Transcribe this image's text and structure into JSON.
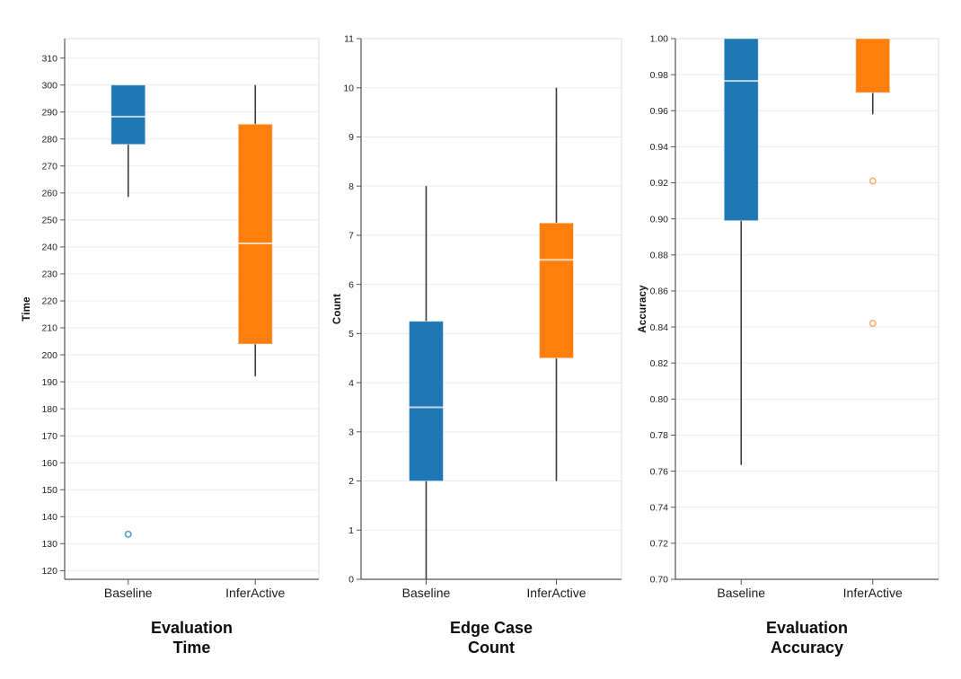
{
  "figure": {
    "background": "#ffffff"
  },
  "colors": {
    "baseline": "#1f77b4",
    "inferactive": "#ff7f0e",
    "baseline_outlier": "#55a0d3",
    "inferactive_outlier": "#fcae6b",
    "grid": "#ebebeb",
    "plot_border": "#dcdcdc",
    "axis": "#555555",
    "whisker": "#3a3a3a",
    "median": "rgba(255,255,255,0.7)",
    "tick_text": "#222222",
    "category_text": "#1a1a1a",
    "title_text": "#0d0d0d"
  },
  "chart_data": [
    {
      "type": "box",
      "title_lines": [
        "Evaluation",
        "Time"
      ],
      "ylabel": "Time",
      "xlabel": "",
      "categories": [
        "Baseline",
        "InferActive"
      ],
      "ylim": [
        116.8,
        317.2
      ],
      "yticks": [
        120,
        130,
        140,
        150,
        160,
        170,
        180,
        190,
        200,
        210,
        220,
        230,
        240,
        250,
        260,
        270,
        280,
        290,
        300,
        310
      ],
      "ytick_labels": [
        "120",
        "130",
        "140",
        "150",
        "160",
        "170",
        "180",
        "190",
        "200",
        "210",
        "220",
        "230",
        "240",
        "250",
        "260",
        "270",
        "280",
        "290",
        "300",
        "310"
      ],
      "grid": true,
      "legend_position": "none",
      "series": [
        {
          "name": "Baseline",
          "color": "baseline",
          "outlier_color": "baseline_outlier",
          "whisker_low": 258.5,
          "q1": 278,
          "median": 288.3,
          "q3": 300,
          "whisker_high": 300,
          "outliers": [
            133.5
          ]
        },
        {
          "name": "InferActive",
          "color": "inferactive",
          "outlier_color": "inferactive_outlier",
          "whisker_low": 192,
          "q1": 204,
          "median": 241.3,
          "q3": 285.5,
          "whisker_high": 300,
          "outliers": []
        }
      ]
    },
    {
      "type": "box",
      "title_lines": [
        "Edge Case",
        "Count"
      ],
      "ylabel": "Count",
      "xlabel": "",
      "categories": [
        "Baseline",
        "InferActive"
      ],
      "ylim": [
        0,
        11
      ],
      "yticks": [
        0,
        1,
        2,
        3,
        4,
        5,
        6,
        7,
        8,
        9,
        10,
        11
      ],
      "ytick_labels": [
        "0",
        "1",
        "2",
        "3",
        "4",
        "5",
        "6",
        "7",
        "8",
        "9",
        "10",
        "11"
      ],
      "grid": true,
      "legend_position": "none",
      "series": [
        {
          "name": "Baseline",
          "color": "baseline",
          "outlier_color": "baseline_outlier",
          "whisker_low": 0,
          "q1": 2,
          "median": 3.5,
          "q3": 5.25,
          "whisker_high": 8,
          "outliers": []
        },
        {
          "name": "InferActive",
          "color": "inferactive",
          "outlier_color": "inferactive_outlier",
          "whisker_low": 2,
          "q1": 4.5,
          "median": 6.5,
          "q3": 7.25,
          "whisker_high": 10,
          "outliers": []
        }
      ]
    },
    {
      "type": "box",
      "title_lines": [
        "Evaluation",
        "Accuracy"
      ],
      "ylabel": "Accuracy",
      "xlabel": "",
      "categories": [
        "Baseline",
        "InferActive"
      ],
      "ylim": [
        0.7,
        1.0
      ],
      "yticks": [
        0.7,
        0.72,
        0.74,
        0.76,
        0.78,
        0.8,
        0.82,
        0.84,
        0.86,
        0.88,
        0.9,
        0.92,
        0.94,
        0.96,
        0.98,
        1.0
      ],
      "ytick_labels": [
        "0.70",
        "0.72",
        "0.74",
        "0.76",
        "0.78",
        "0.80",
        "0.82",
        "0.84",
        "0.86",
        "0.88",
        "0.90",
        "0.92",
        "0.94",
        "0.96",
        "0.98",
        "1.00"
      ],
      "grid": true,
      "legend_position": "none",
      "series": [
        {
          "name": "Baseline",
          "color": "baseline",
          "outlier_color": "baseline_outlier",
          "whisker_low": 0.7635,
          "q1": 0.899,
          "median": 0.9765,
          "q3": 1.0,
          "whisker_high": 1.0,
          "outliers": []
        },
        {
          "name": "InferActive",
          "color": "inferactive",
          "outlier_color": "inferactive_outlier",
          "whisker_low": 0.958,
          "q1": 0.97,
          "median": 1.0,
          "q3": 1.0,
          "whisker_high": 1.0,
          "outliers": [
            0.921,
            0.842
          ]
        }
      ]
    }
  ]
}
